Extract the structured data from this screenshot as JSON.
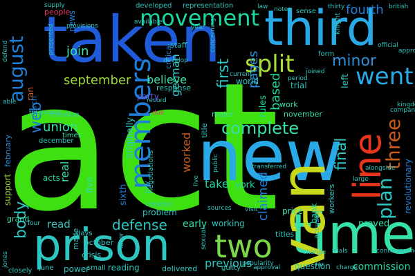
{
  "background": "#000000",
  "words": [
    {
      "text": "act",
      "color": "#3ee012"
    },
    {
      "text": "taken",
      "color": "#1f5ad8"
    },
    {
      "text": "new",
      "color": "#29a9e6"
    },
    {
      "text": "third",
      "color": "#29a9e6"
    },
    {
      "text": "prison",
      "color": "#2dc6c0"
    },
    {
      "text": "time",
      "color": "#36e0a6"
    },
    {
      "text": "van",
      "color": "#c8d81c"
    },
    {
      "text": "line",
      "color": "#e8351c"
    },
    {
      "text": "movement",
      "color": "#1ed6a0"
    },
    {
      "text": "two",
      "color": "#7ad84a"
    },
    {
      "text": "members",
      "color": "#1f7fd8"
    },
    {
      "text": "split",
      "color": "#aadf33"
    },
    {
      "text": "went",
      "color": "#29a9e6"
    },
    {
      "text": "three",
      "color": "#c85a1c"
    },
    {
      "text": "plan",
      "color": "#2dc6c0"
    },
    {
      "text": "complete",
      "color": "#36e0a6"
    },
    {
      "text": "august",
      "color": "#1f7fd8"
    },
    {
      "text": "minor",
      "color": "#2d8fd8"
    },
    {
      "text": "fourth",
      "color": "#1f7fd8"
    },
    {
      "text": "first",
      "color": "#2dc6c0"
    },
    {
      "text": "final",
      "color": "#2dc6c0"
    },
    {
      "text": "september",
      "color": "#9ad83a"
    },
    {
      "text": "defense",
      "color": "#2dc6c0"
    },
    {
      "text": "body",
      "color": "#2dc6c0"
    },
    {
      "text": "web",
      "color": "#1f7fd8"
    },
    {
      "text": "union",
      "color": "#36e0a6"
    },
    {
      "text": "pages",
      "color": "#2d8fd8"
    },
    {
      "text": "believe",
      "color": "#36e0a6"
    },
    {
      "text": "join",
      "color": "#36e0a6"
    },
    {
      "text": "based",
      "color": "#1ed6a0"
    },
    {
      "text": "german",
      "color": "#2dc6c0"
    },
    {
      "text": "claimed",
      "color": "#1f7fd8"
    },
    {
      "text": "worked",
      "color": "#c85a1c"
    },
    {
      "text": "take",
      "color": "#1ed6a0"
    },
    {
      "text": "previous",
      "color": "#2dc6c0"
    },
    {
      "text": "commission",
      "color": "#1ed6a0"
    },
    {
      "text": "revolutionary",
      "color": "#1f7fd8"
    },
    {
      "text": "real",
      "color": "#36e0a6"
    },
    {
      "text": "read",
      "color": "#2dc6c0"
    },
    {
      "text": "proved",
      "color": "#36e0a6"
    },
    {
      "text": "working",
      "color": "#2dc6c0"
    },
    {
      "text": "early",
      "color": "#36e0a6"
    },
    {
      "text": "sixth",
      "color": "#1f7fd8"
    },
    {
      "text": "originally",
      "color": "#2dc6c0"
    },
    {
      "text": "rules",
      "color": "#1ed6a0"
    },
    {
      "text": "left",
      "color": "#2dc6c0"
    },
    {
      "text": "world",
      "color": "#2dc6c0"
    },
    {
      "text": "support",
      "color": "#9ad83a"
    },
    {
      "text": "party",
      "color": "#6a5ae6"
    },
    {
      "text": "york",
      "color": "#1ed6a0"
    },
    {
      "text": "february",
      "color": "#2d8fd8"
    },
    {
      "text": "problem",
      "color": "#2dc6c0"
    },
    {
      "text": "reading",
      "color": "#2dc6c0"
    },
    {
      "text": "power",
      "color": "#2dc6c0"
    },
    {
      "text": "bank",
      "color": "#1ed6a0"
    },
    {
      "text": "workers",
      "color": "#2dc6c0"
    },
    {
      "text": "trial",
      "color": "#2dc6c0"
    },
    {
      "text": "price",
      "color": "#36e0a6"
    },
    {
      "text": "titles",
      "color": "#2dc6c0"
    },
    {
      "text": "question",
      "color": "#2dc6c0"
    },
    {
      "text": "acts",
      "color": "#1ed6a0"
    },
    {
      "text": "five",
      "color": "#36e0a6"
    },
    {
      "text": "news",
      "color": "#1f7fd8"
    },
    {
      "text": "people",
      "color": "#e83a6a"
    },
    {
      "text": "ran",
      "color": "#c85a1c"
    },
    {
      "text": "march",
      "color": "#1f7fd8"
    },
    {
      "text": "staff",
      "color": "#2dc6c0"
    },
    {
      "text": "critical",
      "color": "#1f7fd8"
    },
    {
      "text": "response",
      "color": "#2dc6c0"
    },
    {
      "text": "major",
      "color": "#36e0a6"
    },
    {
      "text": "title",
      "color": "#2dc6c0"
    },
    {
      "text": "november",
      "color": "#36e0a6"
    },
    {
      "text": "work",
      "color": "#36e0a6"
    },
    {
      "text": "grand",
      "color": "#36e0a6"
    },
    {
      "text": "accused",
      "color": "#2dc6c0"
    },
    {
      "text": "delivered",
      "color": "#2dc6c0"
    },
    {
      "text": "october",
      "color": "#2dc6c0"
    },
    {
      "text": "crisis",
      "color": "#2dc6c0"
    },
    {
      "text": "made",
      "color": "#2dc6c0"
    },
    {
      "text": "days",
      "color": "#2dc6c0"
    },
    {
      "text": "created",
      "color": "#2dc6c0"
    },
    {
      "text": "negotiations",
      "color": "#2dc6c0"
    },
    {
      "text": "july",
      "color": "#2dc6c0"
    },
    {
      "text": "december",
      "color": "#2dc6c0"
    },
    {
      "text": "times",
      "color": "#36e0a6"
    },
    {
      "text": "creation",
      "color": "#2dc6c0"
    },
    {
      "text": "small",
      "color": "#2dc6c0"
    },
    {
      "text": "june",
      "color": "#2dc6c0"
    },
    {
      "text": "closely",
      "color": "#2dc6c0"
    },
    {
      "text": "sexual",
      "color": "#2dc6c0"
    },
    {
      "text": "guilty",
      "color": "#2dc6c0"
    },
    {
      "text": "approval",
      "color": "#2dc6c0"
    },
    {
      "text": "popularity",
      "color": "#2dc6c0"
    },
    {
      "text": "charge",
      "color": "#2dc6c0"
    },
    {
      "text": "trials",
      "color": "#2dc6c0"
    },
    {
      "text": "alongside",
      "color": "#2dc6c0"
    },
    {
      "text": "kingdom",
      "color": "#2dc6c0"
    },
    {
      "text": "company",
      "color": "#2dc6c0"
    },
    {
      "text": "approved",
      "color": "#2dc6c0"
    },
    {
      "text": "form",
      "color": "#2dc6c0"
    },
    {
      "text": "joined",
      "color": "#2dc6c0"
    },
    {
      "text": "knight",
      "color": "#2dc6c0"
    },
    {
      "text": "sense",
      "color": "#2dc6c0"
    },
    {
      "text": "thirty",
      "color": "#2dc6c0"
    },
    {
      "text": "official",
      "color": "#2dc6c0"
    },
    {
      "text": "british",
      "color": "#2dc6c0"
    },
    {
      "text": "notes",
      "color": "#2dc6c0"
    },
    {
      "text": "law",
      "color": "#2dc6c0"
    },
    {
      "text": "developed",
      "color": "#2dc6c0"
    },
    {
      "text": "representation",
      "color": "#2dc6c0"
    },
    {
      "text": "supply",
      "color": "#2dc6c0"
    },
    {
      "text": "provisions",
      "color": "#2dc6c0"
    },
    {
      "text": "presented",
      "color": "#2dc6c0"
    },
    {
      "text": "available",
      "color": "#2dc6c0"
    },
    {
      "text": "develop",
      "color": "#2dc6c0"
    },
    {
      "text": "concerning",
      "color": "#2dc6c0"
    },
    {
      "text": "year",
      "color": "#2dc6c0"
    },
    {
      "text": "record",
      "color": "#2dc6c0"
    },
    {
      "text": "current",
      "color": "#2dc6c0"
    },
    {
      "text": "period",
      "color": "#2dc6c0"
    },
    {
      "text": "defend",
      "color": "#2dc6c0"
    },
    {
      "text": "able",
      "color": "#2dc6c0"
    },
    {
      "text": "transferred",
      "color": "#2dc6c0"
    },
    {
      "text": "public",
      "color": "#2dc6c0"
    },
    {
      "text": "labor",
      "color": "#2dc6c0"
    },
    {
      "text": "due",
      "color": "#e83a6a"
    },
    {
      "text": "sources",
      "color": "#2dc6c0"
    },
    {
      "text": "live",
      "color": "#2dc6c0"
    },
    {
      "text": "visit",
      "color": "#2dc6c0"
    },
    {
      "text": "far",
      "color": "#2dc6c0"
    },
    {
      "text": "four",
      "color": "#2dc6c0"
    },
    {
      "text": "japanese",
      "color": "#2dc6c0"
    },
    {
      "text": "large",
      "color": "#2dc6c0"
    },
    {
      "text": "continue",
      "color": "#2dc6c0"
    },
    {
      "text": "jones",
      "color": "#2dc6c0"
    },
    {
      "text": "change",
      "color": "#2dc6c0"
    },
    {
      "text": "treatment",
      "color": "#2dc6c0"
    }
  ]
}
